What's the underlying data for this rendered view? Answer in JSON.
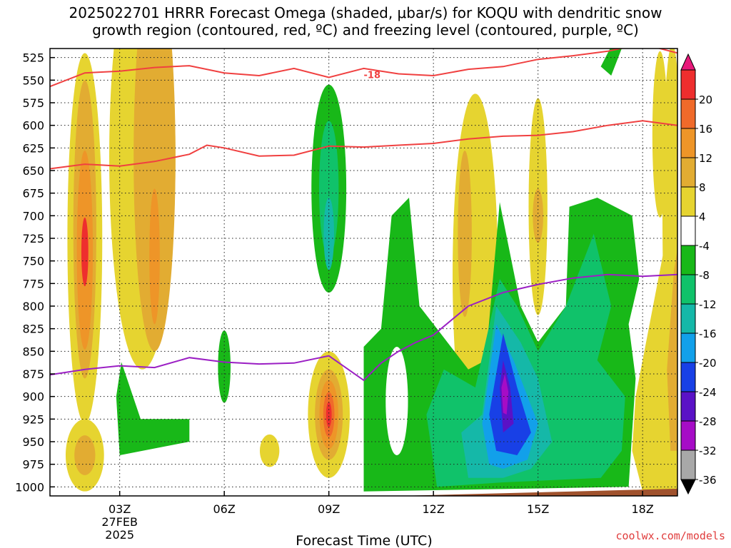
{
  "title_line1": "2025022701 HRRR Forecast Omega (shaded, μbar/s) for KOQU with dendritic snow",
  "title_line2": "growth region (contoured, red, ºC) and freezing level (contoured, purple, ºC)",
  "brand": "coolwx.com/models",
  "colors": {
    "snow_contour": "#f04040",
    "freezing_level": "#9b1fc4",
    "terrain": "#a0522d"
  },
  "chart_data": {
    "type": "heatmap",
    "title": "2025022701 HRRR Forecast Omega (shaded, μbar/s) for KOQU with dendritic snow growth region (contoured, red, ºC) and freezing level (contoured, purple, ºC)",
    "xlabel": "Forecast Time (UTC)",
    "ylabel": "",
    "x_range_hours": [
      1,
      19
    ],
    "y_range_mb": [
      515,
      1010
    ],
    "y_scale": "pressure (inverted)",
    "y_ticks": [
      525,
      550,
      575,
      600,
      625,
      650,
      675,
      700,
      725,
      750,
      775,
      800,
      825,
      850,
      875,
      900,
      925,
      950,
      975,
      1000
    ],
    "x_ticks": [
      {
        "hour": 3,
        "label": "03Z",
        "sub1": "27FEB",
        "sub2": "2025"
      },
      {
        "hour": 6,
        "label": "06Z"
      },
      {
        "hour": 9,
        "label": "09Z"
      },
      {
        "hour": 12,
        "label": "12Z"
      },
      {
        "hour": 15,
        "label": "15Z"
      },
      {
        "hour": 18,
        "label": "18Z"
      }
    ],
    "colorbar": {
      "labels": [
        "20",
        "16",
        "12",
        "8",
        "4",
        "-4",
        "-8",
        "-12",
        "-16",
        "-20",
        "-24",
        "-28",
        "-32",
        "-36"
      ],
      "colors": [
        "#e8187a",
        "#ee2e2e",
        "#f06a2a",
        "#ee9528",
        "#e2ac32",
        "#e6d430",
        "#ffffff",
        "#18b818",
        "#10c26a",
        "#15b8a8",
        "#12a0ea",
        "#1840e6",
        "#5a12c6",
        "#a60cc6",
        "#a8a8a8",
        "#000000"
      ]
    },
    "contour_labels": [
      {
        "text": "-18",
        "hour": 10.0,
        "mb": 544
      }
    ],
    "snow_growth_upper": [
      [
        1,
        557
      ],
      [
        2,
        542
      ],
      [
        3,
        540
      ],
      [
        4,
        536
      ],
      [
        5,
        534
      ],
      [
        6,
        542
      ],
      [
        7,
        545
      ],
      [
        8,
        537
      ],
      [
        9,
        547
      ],
      [
        10,
        537
      ],
      [
        11,
        543
      ],
      [
        12,
        545
      ],
      [
        13,
        538
      ],
      [
        14,
        535
      ],
      [
        15,
        527
      ],
      [
        16,
        523
      ],
      [
        17,
        518
      ],
      [
        18,
        510
      ],
      [
        19,
        520
      ]
    ],
    "snow_growth_lower": [
      [
        1,
        648
      ],
      [
        2,
        643
      ],
      [
        3,
        645
      ],
      [
        4,
        640
      ],
      [
        5,
        632
      ],
      [
        5.5,
        622
      ],
      [
        6,
        625
      ],
      [
        7,
        634
      ],
      [
        8,
        633
      ],
      [
        9,
        623
      ],
      [
        10,
        624
      ],
      [
        11,
        622
      ],
      [
        12,
        620
      ],
      [
        13,
        615
      ],
      [
        14,
        612
      ],
      [
        15,
        611
      ],
      [
        16,
        607
      ],
      [
        17,
        600
      ],
      [
        18,
        595
      ],
      [
        19,
        600
      ]
    ],
    "freezing_level": [
      [
        1,
        876
      ],
      [
        2,
        870
      ],
      [
        3,
        866
      ],
      [
        4,
        868
      ],
      [
        5,
        857
      ],
      [
        6,
        862
      ],
      [
        7,
        864
      ],
      [
        8,
        863
      ],
      [
        9,
        855
      ],
      [
        10,
        882
      ],
      [
        10.5,
        863
      ],
      [
        11,
        850
      ],
      [
        11.5,
        840
      ],
      [
        12,
        832
      ],
      [
        13,
        800
      ],
      [
        14,
        785
      ],
      [
        15,
        776
      ],
      [
        16,
        769
      ],
      [
        17,
        765
      ],
      [
        18,
        767
      ],
      [
        19,
        765
      ]
    ],
    "terrain_top_mb": [
      [
        1,
        1011
      ],
      [
        10,
        1011
      ],
      [
        13,
        1008
      ],
      [
        16,
        1005
      ],
      [
        19,
        1002
      ]
    ],
    "omega_regions": [
      {
        "kind": "ellipse",
        "hour": 2.0,
        "mb": 725,
        "rx": 0.5,
        "ry": 205,
        "color": "#e6d430"
      },
      {
        "kind": "ellipse",
        "hour": 2.0,
        "mb": 715,
        "rx": 0.33,
        "ry": 165,
        "color": "#e2ac32"
      },
      {
        "kind": "ellipse",
        "hour": 2.0,
        "mb": 738,
        "rx": 0.23,
        "ry": 110,
        "color": "#ee9528"
      },
      {
        "kind": "ellipse",
        "hour": 2.0,
        "mb": 740,
        "rx": 0.1,
        "ry": 38,
        "color": "#ee2e2e"
      },
      {
        "kind": "ellipse",
        "hour": 2.0,
        "mb": 965,
        "rx": 0.55,
        "ry": 40,
        "color": "#e6d430"
      },
      {
        "kind": "ellipse",
        "hour": 2.0,
        "mb": 965,
        "rx": 0.3,
        "ry": 22,
        "color": "#e2ac32"
      },
      {
        "kind": "ellipse",
        "hour": 3.65,
        "mb": 635,
        "rx": 0.95,
        "ry": 235,
        "color": "#e6d430"
      },
      {
        "kind": "ellipse",
        "hour": 4.0,
        "mb": 635,
        "rx": 0.6,
        "ry": 215,
        "color": "#e2ac32"
      },
      {
        "kind": "ellipse",
        "hour": 4.0,
        "mb": 745,
        "rx": 0.15,
        "ry": 75,
        "color": "#ee9528"
      },
      {
        "kind": "ellipse",
        "hour": 9.0,
        "mb": 670,
        "rx": 0.5,
        "ry": 115,
        "color": "#18b818"
      },
      {
        "kind": "ellipse",
        "hour": 9.0,
        "mb": 670,
        "rx": 0.28,
        "ry": 75,
        "color": "#10c26a"
      },
      {
        "kind": "ellipse",
        "hour": 9.0,
        "mb": 720,
        "rx": 0.15,
        "ry": 40,
        "color": "#15b8a8"
      },
      {
        "kind": "ellipse",
        "hour": 9.0,
        "mb": 920,
        "rx": 0.6,
        "ry": 70,
        "color": "#e6d430"
      },
      {
        "kind": "ellipse",
        "hour": 9.0,
        "mb": 920,
        "rx": 0.4,
        "ry": 50,
        "color": "#e2ac32"
      },
      {
        "kind": "ellipse",
        "hour": 9.0,
        "mb": 920,
        "rx": 0.27,
        "ry": 38,
        "color": "#ee9528"
      },
      {
        "kind": "ellipse",
        "hour": 9.0,
        "mb": 920,
        "rx": 0.16,
        "ry": 25,
        "color": "#f06a2a"
      },
      {
        "kind": "ellipse",
        "hour": 9.0,
        "mb": 920,
        "rx": 0.08,
        "ry": 14,
        "color": "#ee2e2e"
      },
      {
        "kind": "ellipse",
        "hour": 13.2,
        "mb": 765,
        "rx": 0.65,
        "ry": 200,
        "color": "#e6d430"
      },
      {
        "kind": "ellipse",
        "hour": 12.9,
        "mb": 720,
        "rx": 0.2,
        "ry": 92,
        "color": "#e2ac32"
      },
      {
        "kind": "ellipse",
        "hour": 15.0,
        "mb": 690,
        "rx": 0.27,
        "ry": 120,
        "color": "#e6d430"
      },
      {
        "kind": "ellipse",
        "hour": 15.0,
        "mb": 700,
        "rx": 0.15,
        "ry": 30,
        "color": "#e2ac32"
      },
      {
        "kind": "ellipse",
        "hour": 18.85,
        "mb": 700,
        "rx": 0.28,
        "ry": 190,
        "color": "#e6d430"
      },
      {
        "kind": "ellipse",
        "hour": 18.5,
        "mb": 610,
        "rx": 0.22,
        "ry": 92,
        "color": "#e6d430"
      },
      {
        "kind": "polygon",
        "color": "#e6d430",
        "points": [
          [
            18.0,
            1005
          ],
          [
            19.2,
            1005
          ],
          [
            19.2,
            640
          ],
          [
            18.8,
            700
          ],
          [
            18.3,
            800
          ],
          [
            17.8,
            900
          ],
          [
            17.7,
            960
          ]
        ]
      },
      {
        "kind": "polygon",
        "color": "#e2ac32",
        "points": [
          [
            18.8,
            960
          ],
          [
            19.2,
            960
          ],
          [
            19.2,
            690
          ],
          [
            18.9,
            760
          ],
          [
            18.7,
            870
          ]
        ]
      },
      {
        "kind": "polygon",
        "color": "#ee9528",
        "points": [
          [
            19.0,
            900
          ],
          [
            19.2,
            900
          ],
          [
            19.2,
            700
          ],
          [
            19.05,
            800
          ]
        ]
      },
      {
        "kind": "polygon",
        "color": "#18b818",
        "points": [
          [
            3.05,
            862
          ],
          [
            3.6,
            925
          ],
          [
            5.0,
            925
          ],
          [
            5.0,
            950
          ],
          [
            3.0,
            965
          ],
          [
            2.9,
            900
          ]
        ]
      },
      {
        "kind": "ellipse",
        "hour": 6.0,
        "mb": 867,
        "rx": 0.18,
        "ry": 40,
        "color": "#18b818"
      },
      {
        "kind": "ellipse",
        "hour": 7.3,
        "mb": 960,
        "rx": 0.28,
        "ry": 18,
        "color": "#e6d430"
      },
      {
        "kind": "polygon",
        "color": "#18b818",
        "points": [
          [
            17.2,
            505
          ],
          [
            17.5,
            505
          ],
          [
            17.1,
            545
          ],
          [
            16.8,
            535
          ]
        ]
      },
      {
        "kind": "polygon",
        "color": "#18b818",
        "points": [
          [
            10.0,
            1005
          ],
          [
            10.0,
            845
          ],
          [
            10.5,
            825
          ],
          [
            10.8,
            700
          ],
          [
            11.3,
            680
          ],
          [
            11.6,
            800
          ],
          [
            12.0,
            820
          ],
          [
            13.0,
            870
          ],
          [
            13.5,
            860
          ],
          [
            13.9,
            685
          ],
          [
            14.5,
            800
          ],
          [
            15.0,
            840
          ],
          [
            15.8,
            800
          ],
          [
            15.9,
            690
          ],
          [
            16.7,
            680
          ],
          [
            17.7,
            700
          ],
          [
            17.9,
            770
          ],
          [
            17.6,
            820
          ],
          [
            17.8,
            880
          ],
          [
            17.6,
            1000
          ]
        ]
      },
      {
        "kind": "polygon",
        "color": "#10c26a",
        "points": [
          [
            12.1,
            1000
          ],
          [
            11.8,
            920
          ],
          [
            12.3,
            870
          ],
          [
            13.2,
            890
          ],
          [
            13.9,
            770
          ],
          [
            14.4,
            800
          ],
          [
            15.0,
            850
          ],
          [
            15.8,
            800
          ],
          [
            16.6,
            720
          ],
          [
            17.1,
            800
          ],
          [
            16.7,
            860
          ],
          [
            17.5,
            900
          ],
          [
            17.4,
            960
          ],
          [
            16.8,
            990
          ],
          [
            14.0,
            995
          ]
        ]
      },
      {
        "kind": "polygon",
        "color": "#15b8a8",
        "points": [
          [
            13.0,
            990
          ],
          [
            12.8,
            940
          ],
          [
            13.4,
            920
          ],
          [
            13.8,
            800
          ],
          [
            14.5,
            840
          ],
          [
            15.0,
            880
          ],
          [
            15.4,
            950
          ],
          [
            14.8,
            980
          ],
          [
            14.0,
            990
          ]
        ]
      },
      {
        "kind": "polygon",
        "color": "#12a0ea",
        "points": [
          [
            13.6,
            975
          ],
          [
            13.4,
            930
          ],
          [
            13.8,
            820
          ],
          [
            14.3,
            860
          ],
          [
            15.0,
            930
          ],
          [
            14.7,
            970
          ],
          [
            14.0,
            980
          ]
        ]
      },
      {
        "kind": "polygon",
        "color": "#1840e6",
        "points": [
          [
            13.8,
            960
          ],
          [
            13.6,
            920
          ],
          [
            14.0,
            830
          ],
          [
            14.4,
            890
          ],
          [
            14.8,
            940
          ],
          [
            14.4,
            965
          ]
        ]
      },
      {
        "kind": "polygon",
        "color": "#5a12c6",
        "points": [
          [
            14.0,
            940
          ],
          [
            13.9,
            890
          ],
          [
            14.0,
            860
          ],
          [
            14.2,
            890
          ],
          [
            14.3,
            930
          ]
        ]
      },
      {
        "kind": "polygon",
        "color": "#a60cc6",
        "points": [
          [
            14.0,
            918
          ],
          [
            13.95,
            890
          ],
          [
            14.05,
            875
          ],
          [
            14.15,
            895
          ],
          [
            14.1,
            920
          ]
        ]
      },
      {
        "kind": "ellipse",
        "hour": 10.95,
        "mb": 905,
        "rx": 0.32,
        "ry": 60,
        "color": "#ffffff"
      }
    ]
  }
}
